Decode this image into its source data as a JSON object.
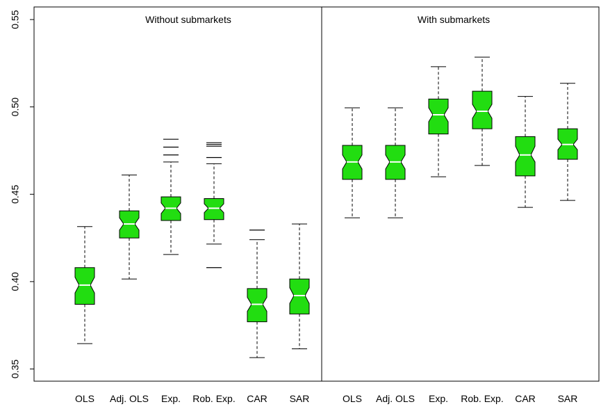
{
  "chart_data": {
    "type": "boxplot",
    "notched": true,
    "box_color": "#22dd11",
    "ylim": [
      0.345,
      0.56
    ],
    "yticks": [
      {
        "value": 0.35,
        "label": "0.35"
      },
      {
        "value": 0.4,
        "label": "0.40"
      },
      {
        "value": 0.45,
        "label": "0.45"
      },
      {
        "value": 0.5,
        "label": "0.50"
      },
      {
        "value": 0.55,
        "label": "0.55"
      }
    ],
    "panels": [
      {
        "title": "Without submarkets",
        "boxes": [
          {
            "label": "OLS",
            "whisker_low": 0.3645,
            "q1": 0.387,
            "median": 0.398,
            "q3": 0.408,
            "whisker_high": 0.4315,
            "notch": [
              0.3935,
              0.4025
            ],
            "outliers": []
          },
          {
            "label": "Adj. OLS",
            "whisker_low": 0.4015,
            "q1": 0.425,
            "median": 0.433,
            "q3": 0.4405,
            "whisker_high": 0.461,
            "notch": [
              0.4295,
              0.4365
            ],
            "outliers": []
          },
          {
            "label": "Exp.",
            "whisker_low": 0.4155,
            "q1": 0.435,
            "median": 0.442,
            "q3": 0.4485,
            "whisker_high": 0.4685,
            "notch": [
              0.439,
              0.445
            ],
            "outliers": [
              0.4725,
              0.477,
              0.4815
            ]
          },
          {
            "label": "Rob. Exp.",
            "whisker_low": 0.4215,
            "q1": 0.4355,
            "median": 0.442,
            "q3": 0.4475,
            "whisker_high": 0.4675,
            "notch": [
              0.4395,
              0.4445
            ],
            "outliers": [
              0.408,
              0.471,
              0.4775,
              0.4785,
              0.4795
            ]
          },
          {
            "label": "CAR",
            "whisker_low": 0.3565,
            "q1": 0.377,
            "median": 0.387,
            "q3": 0.396,
            "whisker_high": 0.424,
            "notch": [
              0.383,
              0.391
            ],
            "outliers": [
              0.4295
            ]
          },
          {
            "label": "SAR",
            "whisker_low": 0.3615,
            "q1": 0.3815,
            "median": 0.392,
            "q3": 0.4015,
            "whisker_high": 0.433,
            "notch": [
              0.3875,
              0.3965
            ],
            "outliers": []
          }
        ]
      },
      {
        "title": "With submarkets",
        "boxes": [
          {
            "label": "OLS",
            "whisker_low": 0.4365,
            "q1": 0.4585,
            "median": 0.4685,
            "q3": 0.478,
            "whisker_high": 0.4995,
            "notch": [
              0.4645,
              0.4725
            ],
            "outliers": []
          },
          {
            "label": "Adj. OLS",
            "whisker_low": 0.4365,
            "q1": 0.4585,
            "median": 0.4685,
            "q3": 0.478,
            "whisker_high": 0.4995,
            "notch": [
              0.4645,
              0.4725
            ],
            "outliers": []
          },
          {
            "label": "Exp.",
            "whisker_low": 0.46,
            "q1": 0.4845,
            "median": 0.4955,
            "q3": 0.5045,
            "whisker_high": 0.523,
            "notch": [
              0.4915,
              0.4995
            ],
            "outliers": []
          },
          {
            "label": "Rob. Exp.",
            "whisker_low": 0.4665,
            "q1": 0.4875,
            "median": 0.4975,
            "q3": 0.509,
            "whisker_high": 0.5285,
            "notch": [
              0.4935,
              0.5015
            ],
            "outliers": []
          },
          {
            "label": "CAR",
            "whisker_low": 0.4425,
            "q1": 0.4605,
            "median": 0.4725,
            "q3": 0.483,
            "whisker_high": 0.506,
            "notch": [
              0.4685,
              0.4775
            ],
            "outliers": []
          },
          {
            "label": "SAR",
            "whisker_low": 0.4465,
            "q1": 0.47,
            "median": 0.4785,
            "q3": 0.4875,
            "whisker_high": 0.5135,
            "notch": [
              0.4755,
              0.4815
            ],
            "outliers": []
          }
        ]
      }
    ]
  }
}
